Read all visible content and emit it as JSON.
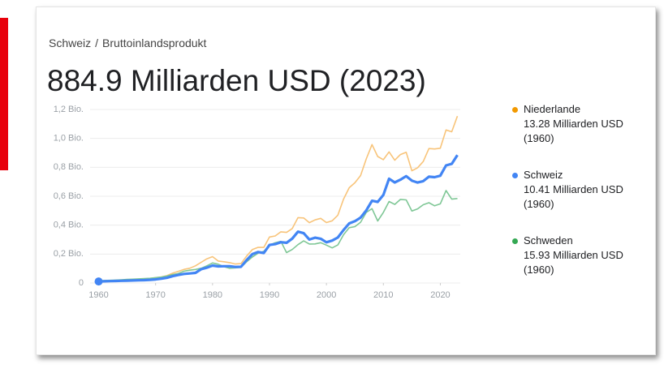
{
  "breadcrumb": [
    "Schweiz",
    "/",
    "Bruttoinlandsprodukt"
  ],
  "headline": "884.9 Milliarden USD (2023)",
  "chart_data": {
    "type": "line",
    "x": [
      1960,
      1961,
      1962,
      1963,
      1964,
      1965,
      1966,
      1967,
      1968,
      1969,
      1970,
      1971,
      1972,
      1973,
      1974,
      1975,
      1976,
      1977,
      1978,
      1979,
      1980,
      1981,
      1982,
      1983,
      1984,
      1985,
      1986,
      1987,
      1988,
      1989,
      1990,
      1991,
      1992,
      1993,
      1994,
      1995,
      1996,
      1997,
      1998,
      1999,
      2000,
      2001,
      2002,
      2003,
      2004,
      2005,
      2006,
      2007,
      2008,
      2009,
      2010,
      2011,
      2012,
      2013,
      2014,
      2015,
      2016,
      2017,
      2018,
      2019,
      2020,
      2021,
      2022,
      2023
    ],
    "series": [
      {
        "name": "Niederlande",
        "legend_label": "13.28 Milliarden USD (1960)",
        "color": "#f8c47a",
        "dot_color": "#f29900",
        "width": 1.6,
        "values": [
          0.013,
          0.014,
          0.015,
          0.016,
          0.019,
          0.021,
          0.023,
          0.025,
          0.027,
          0.031,
          0.037,
          0.042,
          0.051,
          0.068,
          0.081,
          0.094,
          0.102,
          0.119,
          0.143,
          0.167,
          0.182,
          0.152,
          0.147,
          0.141,
          0.131,
          0.134,
          0.187,
          0.231,
          0.247,
          0.246,
          0.318,
          0.325,
          0.354,
          0.35,
          0.376,
          0.452,
          0.45,
          0.417,
          0.436,
          0.447,
          0.418,
          0.43,
          0.469,
          0.58,
          0.659,
          0.693,
          0.743,
          0.858,
          0.957,
          0.875,
          0.853,
          0.907,
          0.849,
          0.888,
          0.904,
          0.776,
          0.797,
          0.84,
          0.93,
          0.927,
          0.932,
          1.058,
          1.046,
          1.154
        ]
      },
      {
        "name": "Schweden",
        "legend_label": "15.93 Milliarden USD (1960)",
        "color": "#7fc796",
        "dot_color": "#34a853",
        "width": 1.6,
        "values": [
          0.0159,
          0.0172,
          0.0186,
          0.0202,
          0.0223,
          0.0245,
          0.0265,
          0.0287,
          0.0302,
          0.0327,
          0.0371,
          0.0408,
          0.0483,
          0.0587,
          0.0654,
          0.0818,
          0.0887,
          0.0934,
          0.1021,
          0.119,
          0.1387,
          0.13,
          0.1134,
          0.1019,
          0.1048,
          0.1081,
          0.1468,
          0.1801,
          0.2062,
          0.2191,
          0.2613,
          0.278,
          0.2876,
          0.2103,
          0.2316,
          0.2654,
          0.2909,
          0.2698,
          0.2703,
          0.2786,
          0.2621,
          0.2428,
          0.263,
          0.3338,
          0.3822,
          0.3897,
          0.4201,
          0.4879,
          0.514,
          0.4292,
          0.4885,
          0.5636,
          0.5436,
          0.5783,
          0.5745,
          0.4981,
          0.5126,
          0.5412,
          0.5552,
          0.5336,
          0.5474,
          0.6393,
          0.5797,
          0.5841
        ]
      },
      {
        "name": "Schweiz",
        "legend_label": "10.41 Milliarden USD (1960)",
        "color": "#4285f4",
        "dot_color": "#4285f4",
        "width": 3.2,
        "values": [
          0.0104,
          0.0115,
          0.0127,
          0.0138,
          0.015,
          0.016,
          0.0172,
          0.0185,
          0.0198,
          0.0217,
          0.0247,
          0.0297,
          0.0361,
          0.0472,
          0.0556,
          0.0626,
          0.0662,
          0.0702,
          0.0952,
          0.1059,
          0.1204,
          0.115,
          0.1161,
          0.1158,
          0.1108,
          0.1119,
          0.1595,
          0.1999,
          0.2142,
          0.2073,
          0.2628,
          0.2686,
          0.2822,
          0.2781,
          0.3068,
          0.3552,
          0.3443,
          0.3006,
          0.3133,
          0.3063,
          0.2817,
          0.293,
          0.3148,
          0.3664,
          0.4123,
          0.4274,
          0.4518,
          0.5021,
          0.5687,
          0.5608,
          0.6087,
          0.721,
          0.6953,
          0.7142,
          0.7391,
          0.7077,
          0.695,
          0.7044,
          0.7352,
          0.7318,
          0.7416,
          0.8133,
          0.8238,
          0.8849
        ]
      }
    ],
    "legend_order": [
      0,
      2,
      1
    ],
    "xlim": [
      1958.5,
      2023.5
    ],
    "xticks": [
      1960,
      1970,
      1980,
      1990,
      2000,
      2010,
      2020
    ],
    "ylim": [
      0,
      1.2
    ],
    "yticks": [
      0,
      {
        "value": 0.2,
        "label": "0,2 Bio."
      },
      {
        "value": 0.4,
        "label": "0,4 Bio."
      },
      {
        "value": 0.6,
        "label": "0,6 Bio."
      },
      {
        "value": 0.8,
        "label": "0,8 Bio."
      },
      {
        "value": 1.0,
        "label": "1,0 Bio."
      },
      {
        "value": 1.2,
        "label": "1,2 Bio."
      }
    ],
    "grid": true
  }
}
